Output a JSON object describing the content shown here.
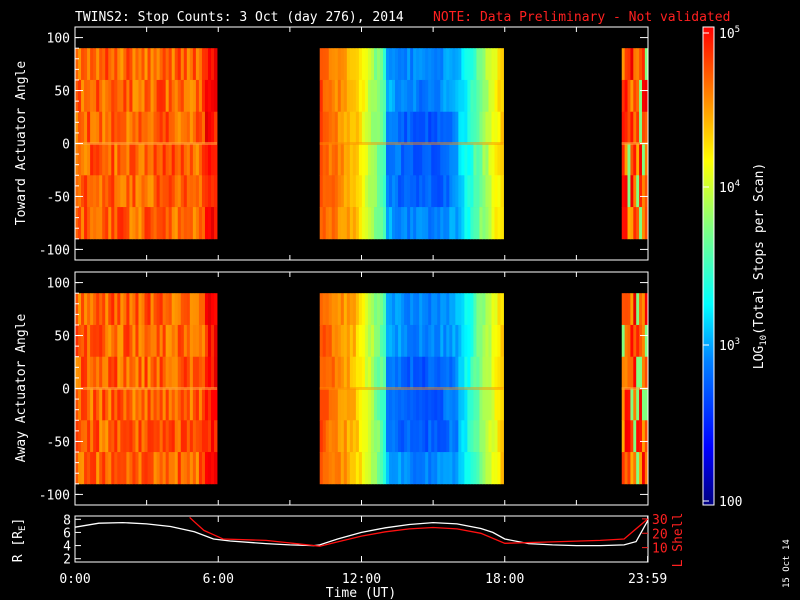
{
  "title": {
    "left": "TWINS2: Stop Counts:  3 Oct (day 276), 2014",
    "note": "NOTE: Data Preliminary - Not validated"
  },
  "colors": {
    "background": "#000000",
    "text": "#ffffff",
    "note": "#ff2020",
    "lshell": "#ff1010",
    "radius": "#ffffff"
  },
  "stamp": "15 Oct 14",
  "chart_data": [
    {
      "type": "heatmap",
      "name": "toward",
      "ylabel": "Toward Actuator Angle",
      "ylim": [
        -110,
        110
      ],
      "yticks": [
        100,
        50,
        0,
        -50,
        -100
      ],
      "data_y_range": [
        -90,
        90
      ],
      "x_unit": "hours UT",
      "data_segments": [
        {
          "start": 0.0,
          "end": 5.95,
          "profile": "dawn"
        },
        {
          "start": 10.25,
          "end": 17.95,
          "profile": "midday"
        },
        {
          "start": 22.9,
          "end": 23.99,
          "profile": "late"
        }
      ]
    },
    {
      "type": "heatmap",
      "name": "away",
      "ylabel": "Away Actuator Angle",
      "ylim": [
        -110,
        110
      ],
      "yticks": [
        100,
        50,
        0,
        -50,
        -100
      ],
      "data_y_range": [
        -90,
        90
      ],
      "x_unit": "hours UT",
      "data_segments": [
        {
          "start": 0.0,
          "end": 5.95,
          "profile": "dawn"
        },
        {
          "start": 10.25,
          "end": 17.95,
          "profile": "midday"
        },
        {
          "start": 22.9,
          "end": 23.99,
          "profile": "late"
        }
      ]
    },
    {
      "type": "line",
      "name": "ephemeris",
      "xlabel": "Time (UT)",
      "xticks": [
        {
          "value": 0,
          "label": "0:00"
        },
        {
          "value": 6,
          "label": "6:00"
        },
        {
          "value": 12,
          "label": "12:00"
        },
        {
          "value": 18,
          "label": "18:00"
        },
        {
          "value": 23.983,
          "label": "23:59"
        }
      ],
      "left_axis": {
        "label": "R [R",
        "label_sub": "E",
        "label_end": "]",
        "ylim": [
          1.5,
          8.5
        ],
        "ticks": [
          2,
          4,
          6,
          8
        ]
      },
      "right_axis": {
        "label": "L Shell",
        "ylim": [
          0,
          32
        ],
        "ticks": [
          10,
          20,
          30
        ]
      },
      "series": [
        {
          "axis": "left",
          "x": [
            0,
            1,
            2,
            3,
            4,
            5,
            5.8,
            6.5,
            8,
            9,
            10,
            10.25,
            11,
            12,
            13,
            14,
            15,
            16,
            17,
            17.5,
            18,
            19,
            20,
            21,
            22,
            23,
            23.5,
            23.99
          ],
          "y": [
            6.8,
            7.4,
            7.5,
            7.3,
            6.9,
            6.1,
            5.0,
            4.7,
            4.3,
            4.1,
            4.0,
            4.1,
            5.0,
            6.0,
            6.7,
            7.2,
            7.5,
            7.3,
            6.6,
            6.0,
            5.0,
            4.3,
            4.1,
            4.0,
            4.0,
            4.1,
            4.6,
            7.8
          ]
        },
        {
          "axis": "right",
          "x": [
            4.8,
            5.0,
            5.4,
            5.8,
            6.2,
            8,
            10.25,
            11,
            12,
            13,
            14,
            15,
            16,
            17,
            18,
            20,
            22,
            23,
            23.99
          ],
          "y": [
            31,
            28,
            22,
            19,
            16,
            15,
            11,
            14,
            18,
            21,
            23,
            24,
            23,
            20,
            13,
            14,
            15,
            16,
            30
          ]
        }
      ]
    }
  ],
  "colorbar": {
    "label": "LOG",
    "label_sub": "10",
    "label_rest": "(Total Stops per Scan)",
    "ticks": [
      {
        "base": "10",
        "exp": "5"
      },
      {
        "base": "10",
        "exp": "4"
      },
      {
        "base": "10",
        "exp": "3"
      },
      {
        "base": "100",
        "exp": ""
      }
    ]
  }
}
